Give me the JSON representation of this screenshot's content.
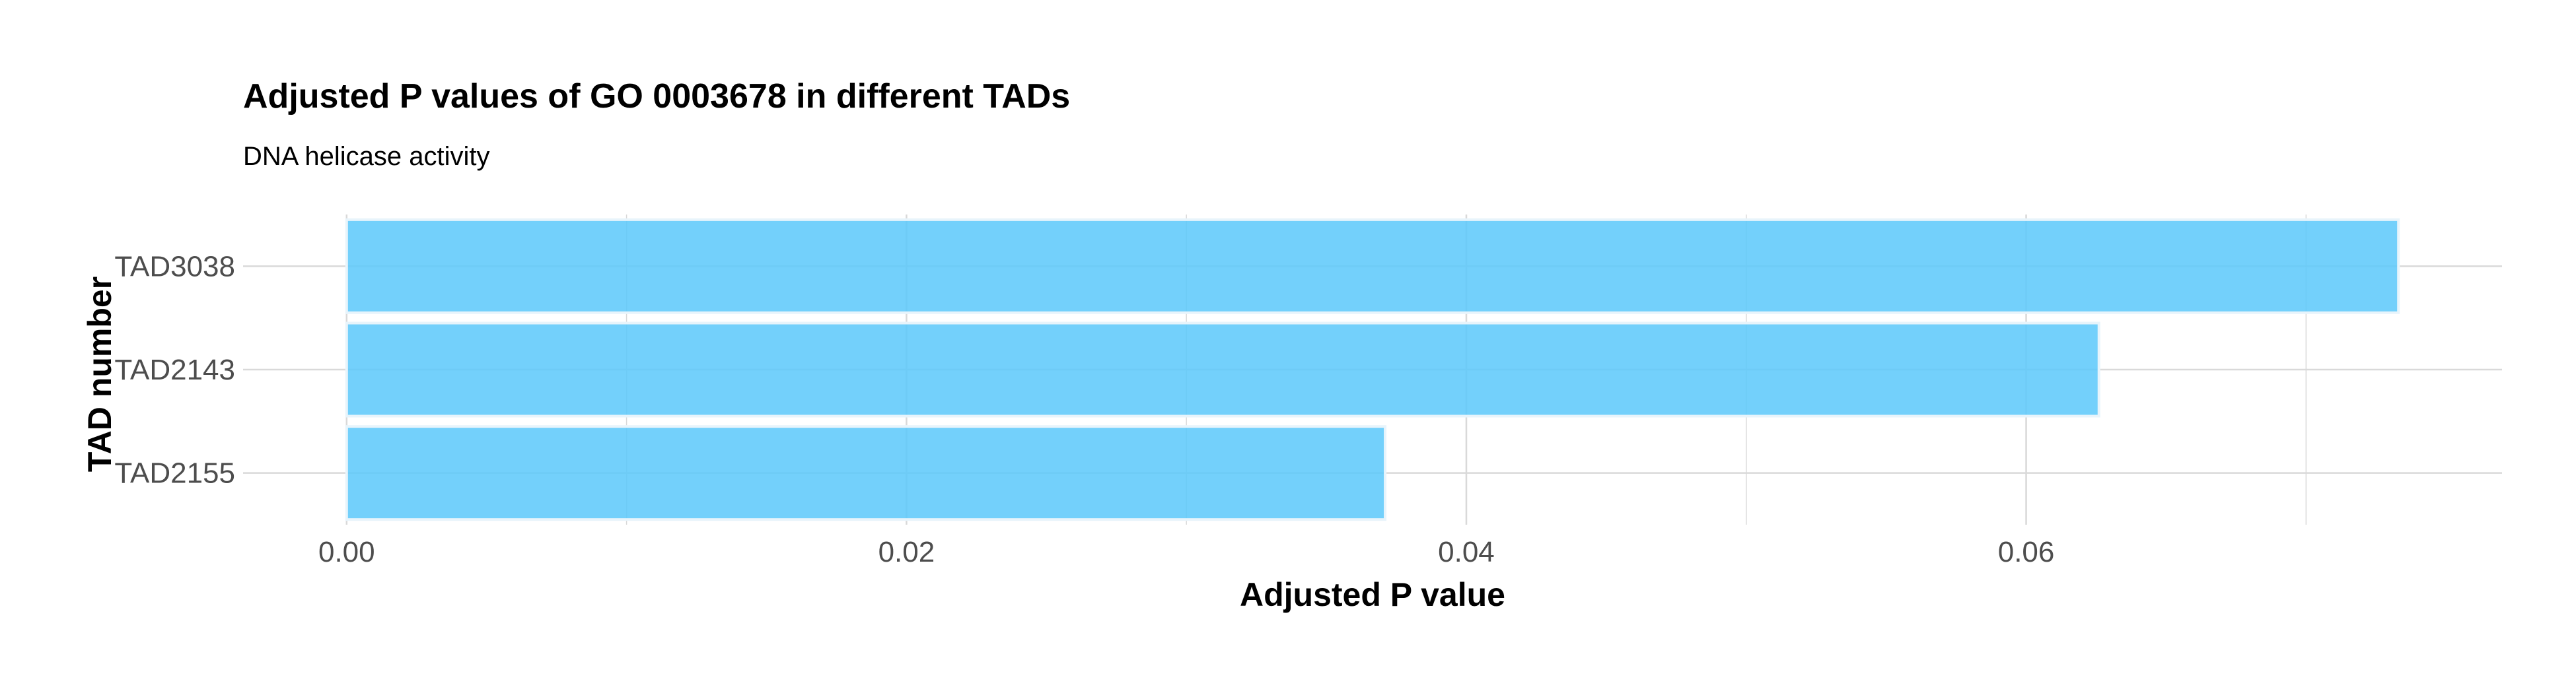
{
  "chart_data": {
    "type": "bar",
    "orientation": "horizontal",
    "title": "Adjusted P values of GO 0003678 in different TADs",
    "subtitle": "DNA helicase activity",
    "xlabel": "Adjusted P value",
    "ylabel": "TAD number",
    "categories": [
      "TAD3038",
      "TAD2143",
      "TAD2155"
    ],
    "values": [
      0.0733,
      0.0626,
      0.0371
    ],
    "xlim": [
      -0.0037,
      0.077
    ],
    "xticks": [
      0.0,
      0.02,
      0.04,
      0.06
    ],
    "xtick_labels": [
      "0.00",
      "0.02",
      "0.04",
      "0.06"
    ],
    "grid": true,
    "bar_color": "#5ac8fa",
    "bar_border_color": "#e8f4fb",
    "grid_color": "#d9d9d9"
  }
}
